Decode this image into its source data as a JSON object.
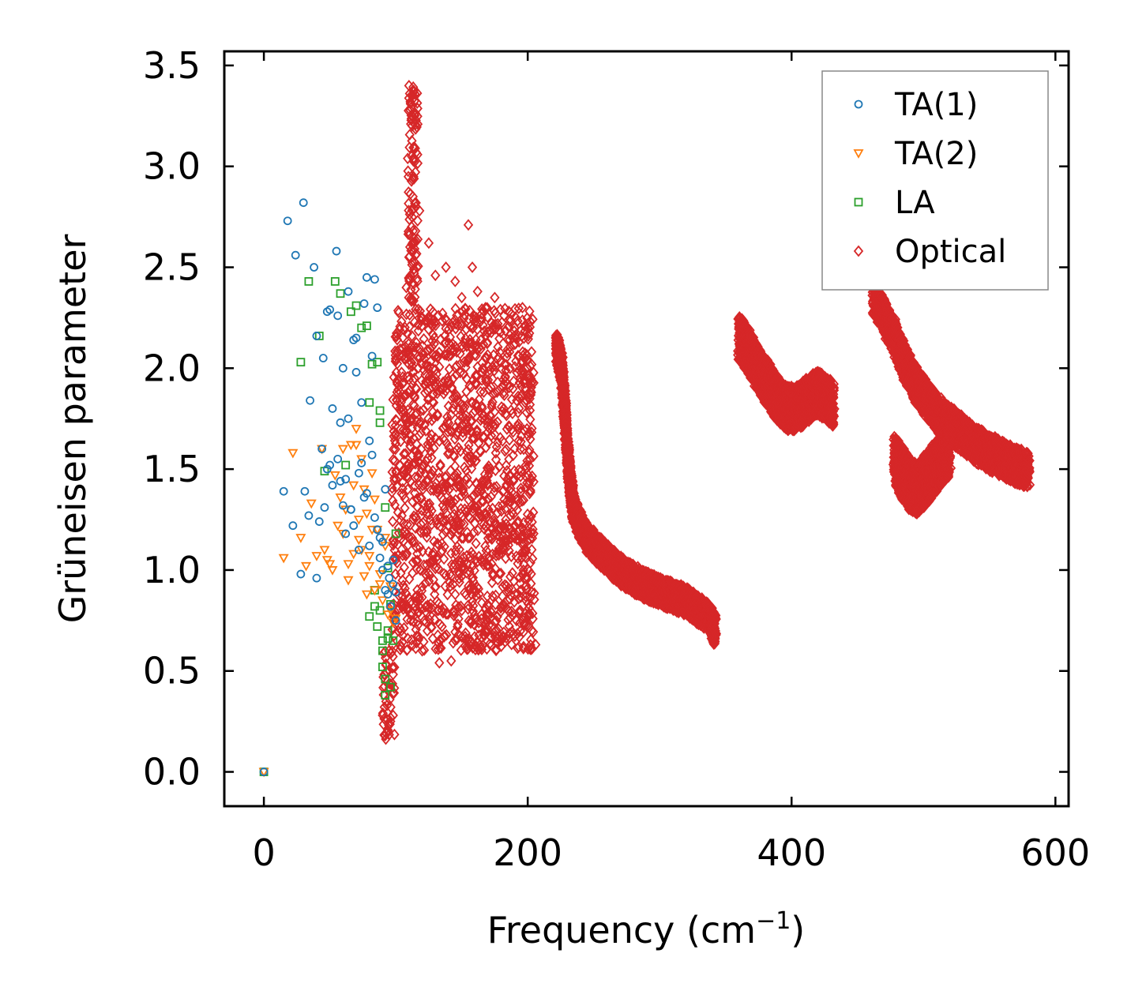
{
  "chart_data": {
    "type": "scatter",
    "title": "",
    "xlabel_text": "Frequency (cm",
    "xlabel_sup": "−1",
    "xlabel_close": ")",
    "ylabel": "Grüneisen parameter",
    "xlim": [
      -30,
      610
    ],
    "ylim": [
      -0.17,
      3.57
    ],
    "xticks": [
      0,
      200,
      400,
      600
    ],
    "xtick_labels": [
      "0",
      "200",
      "400",
      "600"
    ],
    "yticks": [
      0.0,
      0.5,
      1.0,
      1.5,
      2.0,
      2.5,
      3.0,
      3.5
    ],
    "ytick_labels": [
      "0.0",
      "0.5",
      "1.0",
      "1.5",
      "2.0",
      "2.5",
      "3.0",
      "3.5"
    ],
    "legend_position": "top-right",
    "series": [
      {
        "name": "TA(1)",
        "marker": "circle",
        "color": "#1f77b4",
        "x": [
          0,
          15,
          18,
          24,
          30,
          31,
          34,
          38,
          40,
          42,
          45,
          48,
          50,
          52,
          55,
          56,
          58,
          60,
          62,
          64,
          66,
          68,
          70,
          72,
          74,
          76,
          78,
          80,
          82,
          84,
          86,
          88,
          90,
          92,
          94,
          96,
          98,
          100,
          22,
          28,
          35,
          44,
          52,
          60,
          66,
          72,
          78,
          84,
          90,
          95,
          100,
          48,
          56,
          64,
          70,
          76,
          82,
          88,
          94,
          40,
          46,
          58,
          62,
          74,
          80,
          86,
          92,
          98,
          50,
          68
        ],
        "y": [
          0.0,
          1.39,
          2.73,
          2.56,
          2.82,
          1.39,
          1.27,
          2.5,
          0.96,
          1.24,
          2.05,
          2.28,
          2.29,
          1.8,
          2.58,
          1.55,
          1.44,
          2.0,
          1.45,
          2.38,
          1.3,
          2.14,
          1.98,
          1.48,
          1.83,
          2.32,
          2.45,
          1.12,
          1.57,
          2.44,
          1.2,
          1.06,
          1.0,
          0.9,
          0.88,
          0.82,
          1.05,
          0.89,
          1.22,
          0.98,
          1.84,
          1.6,
          1.42,
          1.32,
          1.3,
          1.1,
          1.38,
          1.26,
          1.14,
          0.96,
          0.75,
          1.5,
          2.26,
          1.75,
          2.15,
          1.36,
          2.06,
          1.16,
          1.02,
          2.16,
          1.31,
          1.73,
          1.18,
          1.53,
          1.64,
          2.3,
          1.4,
          0.93,
          1.52,
          1.22
        ]
      },
      {
        "name": "TA(2)",
        "marker": "triangle-down",
        "color": "#ff7f0e",
        "x": [
          0,
          15,
          22,
          28,
          32,
          36,
          40,
          44,
          48,
          50,
          54,
          58,
          60,
          62,
          64,
          66,
          68,
          70,
          72,
          74,
          76,
          78,
          80,
          82,
          84,
          86,
          88,
          90,
          92,
          94,
          96,
          98,
          100,
          46,
          52,
          56,
          60,
          64,
          68,
          72,
          76,
          80,
          84,
          88,
          92,
          96,
          70,
          74,
          78,
          82
        ],
        "y": [
          0.0,
          1.06,
          1.58,
          1.16,
          1.02,
          1.33,
          1.07,
          1.6,
          1.05,
          1.03,
          1.47,
          1.36,
          1.6,
          1.3,
          1.03,
          1.62,
          1.42,
          1.62,
          1.15,
          1.55,
          0.97,
          1.28,
          1.07,
          1.48,
          0.9,
          1.2,
          0.93,
          0.85,
          1.12,
          0.78,
          0.8,
          0.74,
          0.76,
          1.1,
          1.0,
          1.22,
          1.18,
          0.95,
          1.08,
          1.25,
          1.4,
          1.02,
          1.35,
          0.98,
          1.16,
          0.92,
          1.7,
          1.1,
          0.88,
          1.2
        ]
      },
      {
        "name": "LA",
        "marker": "square",
        "color": "#2ca02c",
        "x": [
          0,
          28,
          34,
          42,
          46,
          54,
          58,
          62,
          66,
          70,
          74,
          78,
          80,
          82,
          84,
          86,
          88,
          90,
          92,
          94,
          96,
          98,
          100,
          80,
          84,
          88,
          92,
          96,
          86,
          90,
          94,
          90,
          92,
          94,
          88
        ],
        "y": [
          0.0,
          2.03,
          2.43,
          2.16,
          1.49,
          2.43,
          2.37,
          1.52,
          2.28,
          2.31,
          2.2,
          2.21,
          1.83,
          2.02,
          0.82,
          2.03,
          1.73,
          0.65,
          1.31,
          1.01,
          0.83,
          0.65,
          1.18,
          0.77,
          0.9,
          0.8,
          0.38,
          0.42,
          0.72,
          0.6,
          0.7,
          0.52,
          0.46,
          0.66,
          1.79
        ]
      },
      {
        "name": "Optical",
        "marker": "diamond",
        "color": "#d62728",
        "x": [
          110,
          111,
          112,
          113,
          112,
          110,
          108,
          114,
          116,
          118,
          125,
          130,
          138,
          145,
          150,
          155,
          158,
          162,
          168,
          175,
          182,
          190,
          196,
          200,
          203,
          206,
          120,
          135,
          150,
          165,
          180,
          195,
          100,
          105,
          128,
          142,
          133,
          92,
          94,
          96,
          98
        ],
        "y": [
          3.4,
          3.32,
          3.05,
          2.85,
          2.7,
          2.55,
          2.4,
          2.62,
          2.5,
          2.78,
          2.62,
          2.46,
          2.5,
          2.43,
          2.35,
          2.71,
          2.5,
          2.38,
          2.3,
          2.35,
          2.26,
          2.2,
          2.3,
          2.2,
          0.7,
          0.63,
          0.6,
          0.72,
          0.8,
          0.78,
          0.82,
          0.9,
          1.05,
          1.18,
          0.66,
          0.55,
          0.54,
          0.18,
          0.2,
          0.25,
          0.28
        ]
      }
    ],
    "optical_regions": [
      {
        "desc": "main cluster",
        "x": [
          97,
          205
        ],
        "y": [
          0.6,
          2.3
        ]
      },
      {
        "desc": "spike",
        "x": [
          109,
          117
        ],
        "y": [
          2.3,
          3.4
        ]
      },
      {
        "desc": "dip",
        "x": [
          90,
          99
        ],
        "y": [
          0.16,
          0.6
        ]
      }
    ],
    "optical_curves": [
      {
        "x": [
          222,
          224,
          226,
          228,
          230,
          232,
          234,
          236,
          240,
          245,
          250,
          258,
          266,
          274,
          282,
          290,
          298,
          306,
          314,
          322,
          330,
          338,
          342
        ],
        "y": [
          2.1,
          2.05,
          1.98,
          1.8,
          1.6,
          1.45,
          1.33,
          1.28,
          1.22,
          1.16,
          1.12,
          1.07,
          1.02,
          0.98,
          0.95,
          0.92,
          0.9,
          0.88,
          0.86,
          0.84,
          0.8,
          0.76,
          0.7
        ],
        "spread": 0.14
      },
      {
        "x": [
          360,
          366,
          372,
          378,
          384,
          390,
          396,
          402,
          408,
          414,
          420,
          426,
          432
        ],
        "y": [
          2.15,
          2.1,
          2.03,
          1.96,
          1.9,
          1.84,
          1.8,
          1.8,
          1.82,
          1.85,
          1.88,
          1.85,
          1.82
        ],
        "spread": 0.22
      },
      {
        "x": [
          462,
          470,
          478,
          486,
          494,
          502,
          510,
          520,
          530,
          540,
          550,
          560,
          570,
          580
        ],
        "y": [
          2.36,
          2.26,
          2.15,
          2.02,
          1.92,
          1.85,
          1.78,
          1.72,
          1.67,
          1.62,
          1.58,
          1.55,
          1.52,
          1.49
        ],
        "spread": 0.18
      },
      {
        "x": [
          478,
          484,
          490,
          496,
          502,
          508,
          514,
          520
        ],
        "y": [
          1.55,
          1.48,
          1.42,
          1.4,
          1.45,
          1.5,
          1.55,
          1.58
        ],
        "spread": 0.25
      }
    ]
  }
}
